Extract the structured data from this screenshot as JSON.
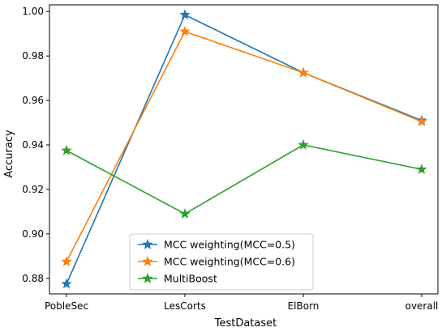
{
  "chart_data": {
    "type": "line",
    "title": "",
    "xlabel": "TestDataset",
    "ylabel": "Accuracy",
    "categories": [
      "PobleSec",
      "LesCorts",
      "ElBorn",
      "overall"
    ],
    "ylim": [
      0.873,
      1.003
    ],
    "yticks": [
      "0.88",
      "0.90",
      "0.92",
      "0.94",
      "0.96",
      "0.98",
      "1.00"
    ],
    "grid": false,
    "legend_position": "lower-center",
    "marker": "star",
    "series": [
      {
        "name": "MCC weighting(MCC=0.5)",
        "color": "#1f77b4",
        "values": [
          0.8775,
          0.9985,
          0.9725,
          0.951
        ]
      },
      {
        "name": "MCC weighting(MCC=0.6)",
        "color": "#ff7f0e",
        "values": [
          0.8875,
          0.991,
          0.9725,
          0.9505
        ]
      },
      {
        "name": "MultiBoost",
        "color": "#2ca02c",
        "values": [
          0.9375,
          0.909,
          0.94,
          0.929
        ]
      }
    ]
  }
}
